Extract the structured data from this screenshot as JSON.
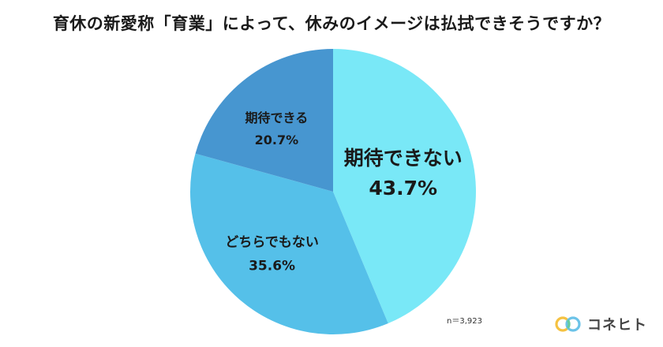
{
  "title": "育休の新愛称「育業」によって、休みのイメージは払拭できそうですか？",
  "note": "n＝3,923",
  "brand": {
    "name": "コネヒト",
    "icon": "brand-rings-icon",
    "colors": [
      "#f5c242",
      "#6cc3e8",
      "#66cba0"
    ]
  },
  "chart_data": {
    "type": "pie",
    "start_angle_deg": 0,
    "direction": "clockwise",
    "slices": [
      {
        "label": "期待できない",
        "value": 43.7,
        "value_label": "43.7%",
        "color": "#79e8f7"
      },
      {
        "label": "どちらでもない",
        "value": 35.6,
        "value_label": "35.6%",
        "color": "#55c0e9"
      },
      {
        "label": "期待できる",
        "value": 20.7,
        "value_label": "20.7%",
        "color": "#4796d0"
      }
    ],
    "legend": "none"
  }
}
